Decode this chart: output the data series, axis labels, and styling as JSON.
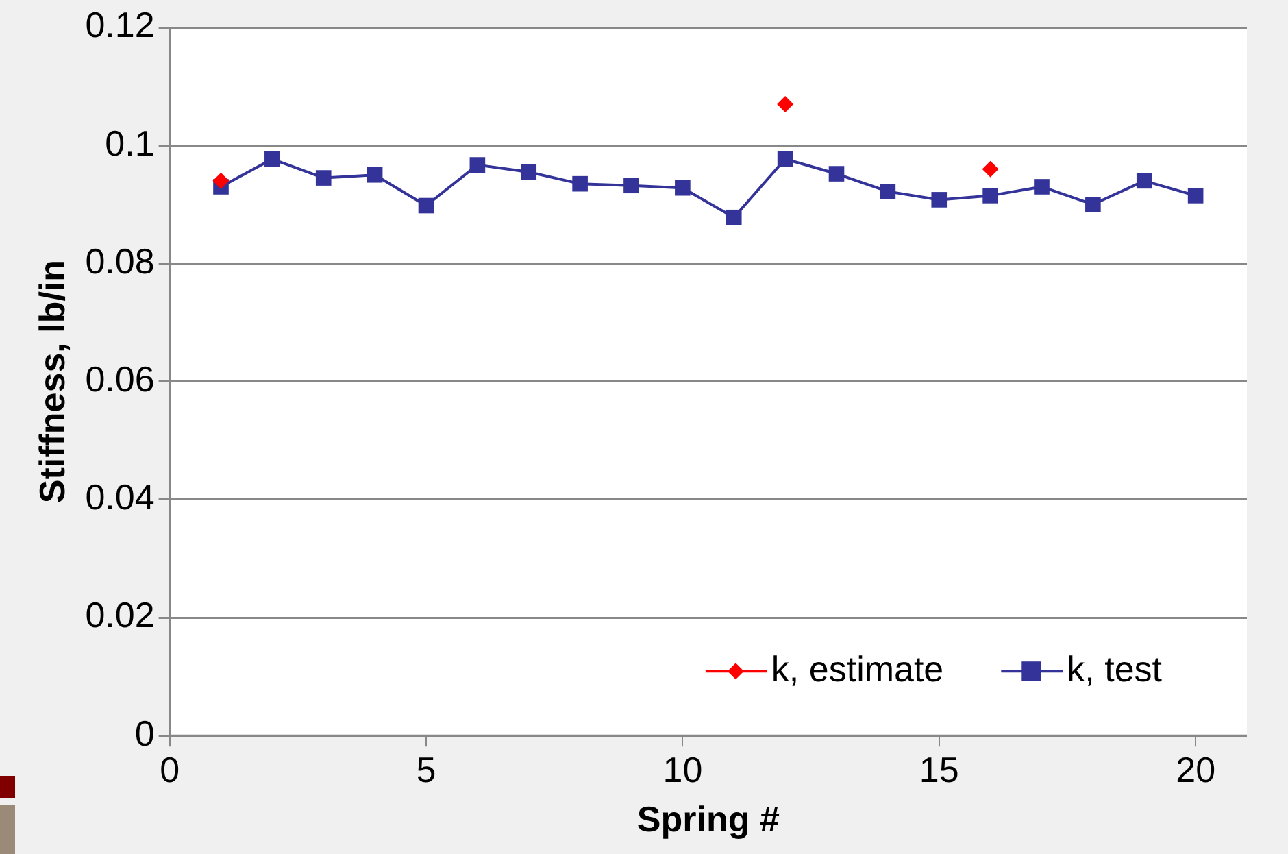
{
  "chart_data": {
    "type": "line",
    "xlabel": "Spring #",
    "ylabel": "Stiffness, lb/in",
    "x": [
      1,
      2,
      3,
      4,
      5,
      6,
      7,
      8,
      9,
      10,
      11,
      12,
      13,
      14,
      15,
      16,
      17,
      18,
      19,
      20
    ],
    "series": [
      {
        "name": "k, estimate",
        "color": "#ff0000",
        "marker": "diamond",
        "values": [
          0.094,
          null,
          null,
          null,
          null,
          null,
          null,
          null,
          null,
          null,
          null,
          0.107,
          null,
          null,
          null,
          0.096,
          null,
          null,
          null,
          null
        ]
      },
      {
        "name": "k, test",
        "color": "#333399",
        "marker": "square",
        "values": [
          0.093,
          0.0977,
          0.0945,
          0.095,
          0.0898,
          0.0967,
          0.0955,
          0.0935,
          0.0932,
          0.0928,
          0.0878,
          0.0977,
          0.0952,
          0.0922,
          0.0908,
          0.0915,
          0.093,
          0.09,
          0.094,
          0.0915
        ]
      }
    ],
    "xlim": [
      0,
      21
    ],
    "xticks": [
      0,
      5,
      10,
      15,
      20
    ],
    "ylim": [
      0,
      0.12
    ],
    "yticks": [
      0,
      0.02,
      0.04,
      0.06,
      0.08,
      0.1,
      0.12
    ],
    "grid": "y",
    "legend": "bottom right"
  }
}
